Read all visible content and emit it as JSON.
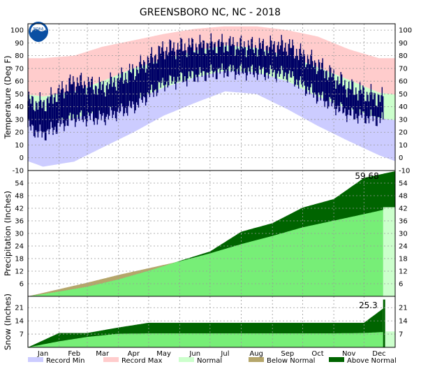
{
  "chart_data": {
    "type": "area",
    "title": "GREENSBORO NC, NC - 2018",
    "months": [
      "Jan",
      "Feb",
      "Mar",
      "Apr",
      "May",
      "Jun",
      "Jul",
      "Aug",
      "Sep",
      "Oct",
      "Nov",
      "Dec"
    ],
    "colors": {
      "record_min": "#ccccff",
      "record_max": "#ffcccc",
      "normal": "#ccffcc",
      "below_normal": "#b5a66b",
      "above_normal": "#006400",
      "observed": "#000066",
      "normal_precip_fill": "#77ee77",
      "precip_actual": "#006400"
    },
    "legend": [
      {
        "key": "record_min",
        "label": "Record Min"
      },
      {
        "key": "record_max",
        "label": "Record Max"
      },
      {
        "key": "normal",
        "label": "Normal"
      },
      {
        "key": "below_normal",
        "label": "Below Normal"
      },
      {
        "key": "above_normal",
        "label": "Above Normal"
      }
    ],
    "temperature": {
      "ylabel": "Temperature (Deg F)",
      "ylim": [
        -10,
        105
      ],
      "ticks": [
        -10,
        0,
        10,
        20,
        30,
        40,
        50,
        60,
        70,
        80,
        90,
        100
      ],
      "record_max_by_month": [
        78,
        80,
        87,
        92,
        97,
        101,
        103,
        103,
        100,
        95,
        85,
        78
      ],
      "normal_high_by_month": [
        48,
        52,
        60,
        70,
        77,
        84,
        88,
        86,
        80,
        71,
        61,
        51
      ],
      "normal_low_by_month": [
        28,
        31,
        37,
        45,
        55,
        63,
        68,
        67,
        60,
        48,
        38,
        31
      ],
      "record_min_by_month": [
        -7,
        -3,
        8,
        20,
        33,
        43,
        52,
        50,
        38,
        25,
        13,
        2
      ],
      "observed_high_by_month": [
        42,
        60,
        55,
        68,
        85,
        88,
        89,
        87,
        88,
        73,
        55,
        47
      ],
      "observed_low_by_month": [
        20,
        33,
        33,
        42,
        60,
        66,
        70,
        69,
        67,
        50,
        36,
        32
      ]
    },
    "precipitation": {
      "ylabel": "Precipitation (Inches)",
      "ylim": [
        0,
        60
      ],
      "ticks": [
        6,
        12,
        18,
        24,
        30,
        36,
        42,
        48,
        54
      ],
      "total_label": "59.68",
      "actual_cumulative_by_month_end": [
        2.3,
        4.6,
        8.1,
        12.2,
        16.9,
        21.4,
        30.8,
        34.9,
        42.3,
        46.4,
        56.5,
        59.68
      ],
      "normal_cumulative_by_month_end": [
        3.4,
        6.5,
        10.2,
        13.4,
        16.7,
        20.5,
        24.9,
        28.8,
        32.9,
        36.1,
        39.2,
        42.5
      ]
    },
    "snow": {
      "ylabel": "Snow (Inches)",
      "ylim": [
        0,
        27
      ],
      "ticks": [
        7,
        14,
        21
      ],
      "total_label": "25.3",
      "actual_cumulative_by_month_end": [
        7.6,
        7.6,
        10.5,
        13.0,
        13.0,
        13.0,
        13.0,
        13.0,
        13.0,
        13.0,
        13.0,
        25.3
      ],
      "normal_cumulative_by_month_end": [
        3.2,
        5.5,
        7.2,
        7.4,
        7.4,
        7.4,
        7.4,
        7.4,
        7.4,
        7.4,
        7.6,
        8.4
      ]
    }
  }
}
